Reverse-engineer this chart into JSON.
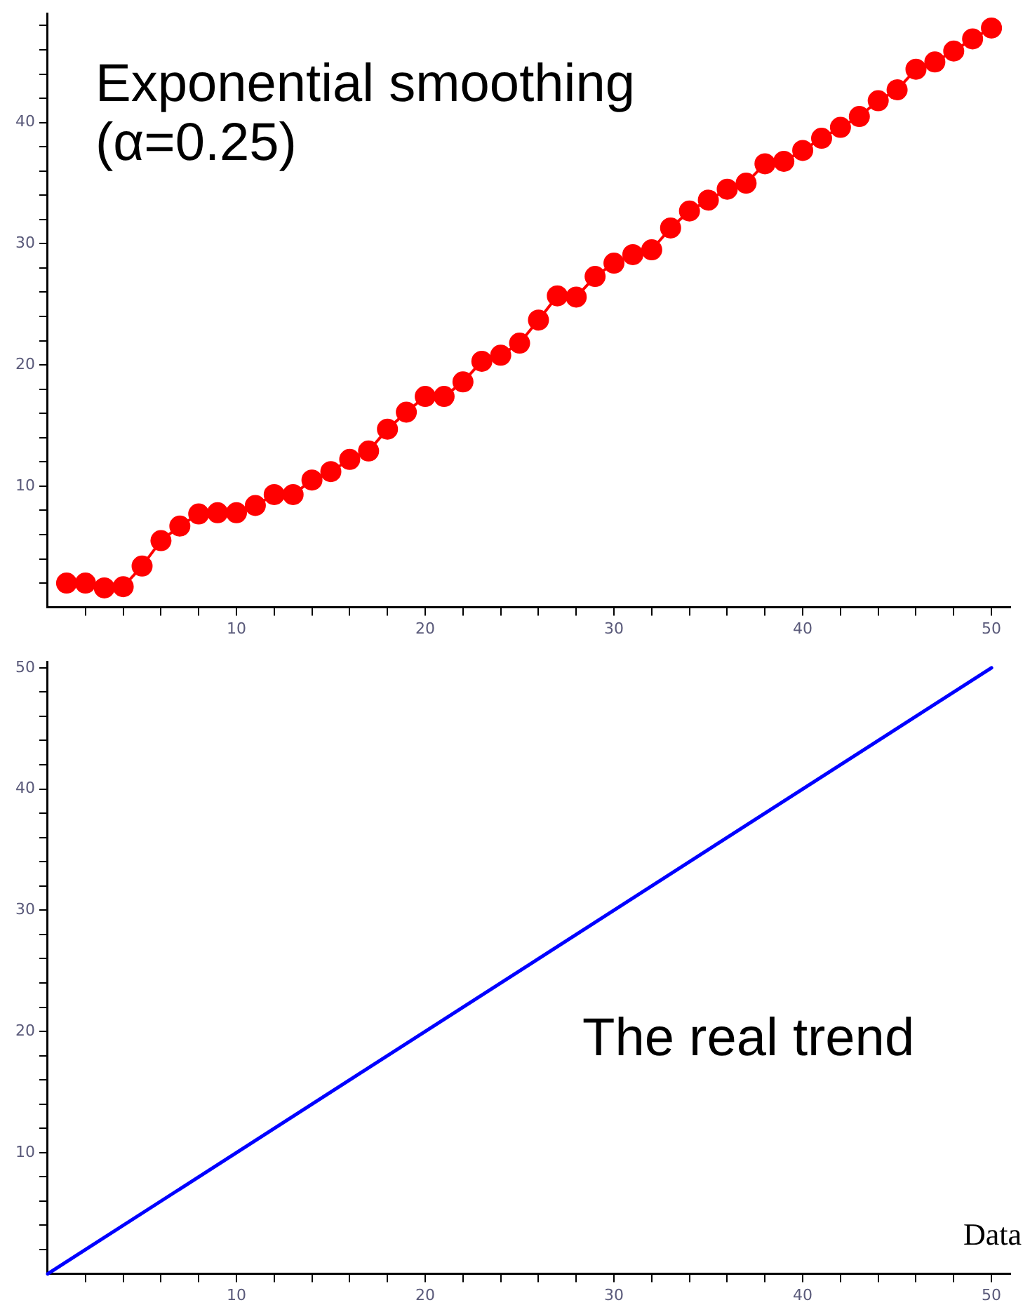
{
  "chart_data": [
    {
      "type": "line",
      "x": [
        1,
        2,
        3,
        4,
        5,
        6,
        7,
        8,
        9,
        10,
        11,
        12,
        13,
        14,
        15,
        16,
        17,
        18,
        19,
        20,
        21,
        22,
        23,
        24,
        25,
        26,
        27,
        28,
        29,
        30,
        31,
        32,
        33,
        34,
        35,
        36,
        37,
        38,
        39,
        40,
        41,
        42,
        43,
        44,
        45,
        46,
        47,
        48,
        49,
        50
      ],
      "values": [
        2.0,
        2.0,
        1.6,
        1.7,
        3.4,
        5.5,
        6.7,
        7.7,
        7.8,
        7.8,
        8.4,
        9.3,
        9.3,
        10.5,
        11.2,
        12.2,
        12.9,
        14.7,
        16.1,
        17.4,
        17.4,
        18.6,
        20.3,
        20.8,
        21.8,
        23.7,
        25.7,
        25.6,
        27.3,
        28.4,
        29.1,
        29.5,
        31.3,
        32.7,
        33.6,
        34.5,
        35.0,
        36.6,
        36.8,
        37.7,
        38.7,
        39.6,
        40.5,
        41.8,
        42.7,
        44.4,
        45.0,
        45.9,
        46.9,
        47.8
      ],
      "color": "#ff0000",
      "marker": "circle",
      "xlim": [
        0,
        51
      ],
      "ylim": [
        0,
        49
      ],
      "xticks": [
        {
          "value": 2,
          "label": null
        },
        {
          "value": 4,
          "label": null
        },
        {
          "value": 6,
          "label": null
        },
        {
          "value": 8,
          "label": null
        },
        10,
        {
          "value": 12,
          "label": null
        },
        {
          "value": 14,
          "label": null
        },
        {
          "value": 16,
          "label": null
        },
        {
          "value": 18,
          "label": null
        },
        20,
        {
          "value": 22,
          "label": null
        },
        {
          "value": 24,
          "label": null
        },
        {
          "value": 26,
          "label": null
        },
        {
          "value": 28,
          "label": null
        },
        30,
        {
          "value": 32,
          "label": null
        },
        {
          "value": 34,
          "label": null
        },
        {
          "value": 36,
          "label": null
        },
        {
          "value": 38,
          "label": null
        },
        40,
        {
          "value": 42,
          "label": null
        },
        {
          "value": 44,
          "label": null
        },
        {
          "value": 46,
          "label": null
        },
        {
          "value": 48,
          "label": null
        },
        50
      ],
      "yticks": [
        {
          "value": 2,
          "label": null
        },
        {
          "value": 4,
          "label": null
        },
        {
          "value": 6,
          "label": null
        },
        {
          "value": 8,
          "label": null
        },
        10,
        {
          "value": 12,
          "label": null
        },
        {
          "value": 14,
          "label": null
        },
        {
          "value": 16,
          "label": null
        },
        {
          "value": 18,
          "label": null
        },
        20,
        {
          "value": 22,
          "label": null
        },
        {
          "value": 24,
          "label": null
        },
        {
          "value": 26,
          "label": null
        },
        {
          "value": 28,
          "label": null
        },
        30,
        {
          "value": 32,
          "label": null
        },
        {
          "value": 34,
          "label": null
        },
        {
          "value": 36,
          "label": null
        },
        {
          "value": 38,
          "label": null
        },
        40,
        {
          "value": 42,
          "label": null
        },
        {
          "value": 44,
          "label": null
        },
        {
          "value": 46,
          "label": null
        },
        {
          "value": 48,
          "label": null
        }
      ],
      "annotations": [
        "Exponential smoothing (α=0.25)"
      ]
    },
    {
      "type": "line",
      "x": [
        0,
        50
      ],
      "values": [
        0,
        50
      ],
      "color": "#0000ff",
      "marker": "none",
      "xlabel": "Data",
      "xlim": [
        0,
        51
      ],
      "ylim": [
        0,
        50.5
      ],
      "xticks": [
        {
          "value": 2,
          "label": null
        },
        {
          "value": 4,
          "label": null
        },
        {
          "value": 6,
          "label": null
        },
        {
          "value": 8,
          "label": null
        },
        10,
        {
          "value": 12,
          "label": null
        },
        {
          "value": 14,
          "label": null
        },
        {
          "value": 16,
          "label": null
        },
        {
          "value": 18,
          "label": null
        },
        20,
        {
          "value": 22,
          "label": null
        },
        {
          "value": 24,
          "label": null
        },
        {
          "value": 26,
          "label": null
        },
        {
          "value": 28,
          "label": null
        },
        30,
        {
          "value": 32,
          "label": null
        },
        {
          "value": 34,
          "label": null
        },
        {
          "value": 36,
          "label": null
        },
        {
          "value": 38,
          "label": null
        },
        40,
        {
          "value": 42,
          "label": null
        },
        {
          "value": 44,
          "label": null
        },
        {
          "value": 46,
          "label": null
        },
        {
          "value": 48,
          "label": null
        },
        50
      ],
      "yticks": [
        {
          "value": 2,
          "label": null
        },
        {
          "value": 4,
          "label": null
        },
        {
          "value": 6,
          "label": null
        },
        {
          "value": 8,
          "label": null
        },
        10,
        {
          "value": 12,
          "label": null
        },
        {
          "value": 14,
          "label": null
        },
        {
          "value": 16,
          "label": null
        },
        {
          "value": 18,
          "label": null
        },
        20,
        {
          "value": 22,
          "label": null
        },
        {
          "value": 24,
          "label": null
        },
        {
          "value": 26,
          "label": null
        },
        {
          "value": 28,
          "label": null
        },
        30,
        {
          "value": 32,
          "label": null
        },
        {
          "value": 34,
          "label": null
        },
        {
          "value": 36,
          "label": null
        },
        {
          "value": 38,
          "label": null
        },
        40,
        {
          "value": 42,
          "label": null
        },
        {
          "value": 44,
          "label": null
        },
        {
          "value": 46,
          "label": null
        },
        {
          "value": 48,
          "label": null
        },
        50
      ],
      "annotations": [
        "The real trend"
      ]
    }
  ]
}
